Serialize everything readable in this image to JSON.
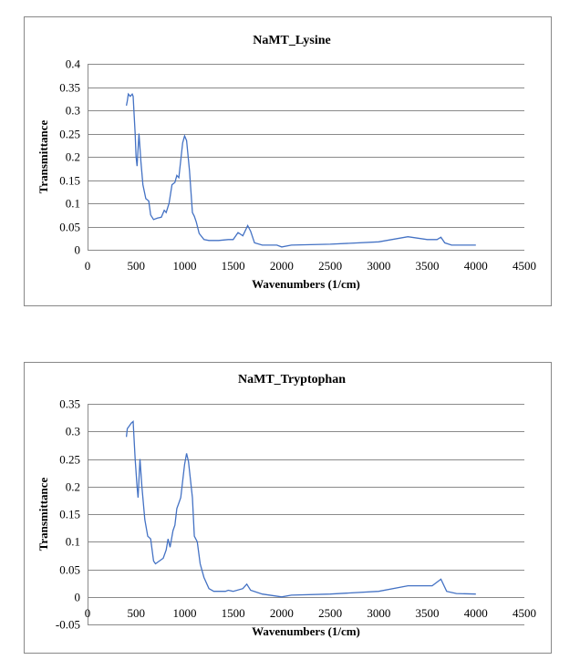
{
  "chart_data": [
    {
      "type": "line",
      "title": "NaMT_Lysine",
      "xlabel": "Wavenumbers (1/cm)",
      "ylabel": "Transmittance",
      "xlim": [
        0,
        4500
      ],
      "ylim": [
        0,
        0.4
      ],
      "xticks": [
        0,
        500,
        1000,
        1500,
        2000,
        2500,
        3000,
        3500,
        4000,
        4500
      ],
      "yticks": [
        0,
        0.05,
        0.1,
        0.15,
        0.2,
        0.25,
        0.3,
        0.35,
        0.4
      ],
      "ytick_labels": [
        "0",
        "0.05",
        "0.1",
        "0.15",
        "0.2",
        "0.25",
        "0.3",
        "0.35",
        "0.4"
      ],
      "grid": true,
      "color": "#4472c4",
      "series": [
        {
          "name": "NaMT_Lysine",
          "points": [
            [
              400,
              0.31
            ],
            [
              410,
              0.32
            ],
            [
              420,
              0.335
            ],
            [
              440,
              0.33
            ],
            [
              460,
              0.335
            ],
            [
              470,
              0.33
            ],
            [
              490,
              0.25
            ],
            [
              500,
              0.2
            ],
            [
              510,
              0.18
            ],
            [
              530,
              0.25
            ],
            [
              550,
              0.19
            ],
            [
              570,
              0.14
            ],
            [
              600,
              0.11
            ],
            [
              630,
              0.105
            ],
            [
              650,
              0.075
            ],
            [
              680,
              0.065
            ],
            [
              720,
              0.068
            ],
            [
              760,
              0.07
            ],
            [
              790,
              0.085
            ],
            [
              810,
              0.08
            ],
            [
              840,
              0.1
            ],
            [
              870,
              0.14
            ],
            [
              900,
              0.145
            ],
            [
              920,
              0.16
            ],
            [
              940,
              0.155
            ],
            [
              980,
              0.23
            ],
            [
              1000,
              0.245
            ],
            [
              1020,
              0.235
            ],
            [
              1050,
              0.17
            ],
            [
              1080,
              0.08
            ],
            [
              1100,
              0.072
            ],
            [
              1120,
              0.06
            ],
            [
              1150,
              0.035
            ],
            [
              1200,
              0.022
            ],
            [
              1250,
              0.02
            ],
            [
              1350,
              0.02
            ],
            [
              1450,
              0.022
            ],
            [
              1500,
              0.022
            ],
            [
              1550,
              0.037
            ],
            [
              1600,
              0.03
            ],
            [
              1650,
              0.052
            ],
            [
              1680,
              0.04
            ],
            [
              1720,
              0.015
            ],
            [
              1800,
              0.01
            ],
            [
              1950,
              0.01
            ],
            [
              2000,
              0.006
            ],
            [
              2100,
              0.01
            ],
            [
              2500,
              0.012
            ],
            [
              3000,
              0.017
            ],
            [
              3300,
              0.028
            ],
            [
              3500,
              0.022
            ],
            [
              3600,
              0.022
            ],
            [
              3640,
              0.027
            ],
            [
              3680,
              0.015
            ],
            [
              3750,
              0.01
            ],
            [
              4000,
              0.01
            ]
          ]
        }
      ]
    },
    {
      "type": "line",
      "title": "NaMT_Tryptophan",
      "xlabel": "Wavenumbers (1/cm)",
      "ylabel": "Transmittance",
      "xlim": [
        0,
        4500
      ],
      "ylim": [
        -0.05,
        0.35
      ],
      "xticks": [
        0,
        500,
        1000,
        1500,
        2000,
        2500,
        3000,
        3500,
        4000,
        4500
      ],
      "yticks": [
        -0.05,
        0,
        0.05,
        0.1,
        0.15,
        0.2,
        0.25,
        0.3,
        0.35
      ],
      "ytick_labels": [
        "-0.05",
        "0",
        "0.05",
        "0.1",
        "0.15",
        "0.2",
        "0.25",
        "0.3",
        "0.35"
      ],
      "grid": true,
      "color": "#4472c4",
      "series": [
        {
          "name": "NaMT_Tryptophan",
          "points": [
            [
              400,
              0.29
            ],
            [
              410,
              0.305
            ],
            [
              430,
              0.31
            ],
            [
              450,
              0.315
            ],
            [
              470,
              0.318
            ],
            [
              490,
              0.25
            ],
            [
              510,
              0.2
            ],
            [
              520,
              0.18
            ],
            [
              540,
              0.25
            ],
            [
              560,
              0.2
            ],
            [
              590,
              0.14
            ],
            [
              620,
              0.11
            ],
            [
              650,
              0.105
            ],
            [
              680,
              0.065
            ],
            [
              700,
              0.06
            ],
            [
              740,
              0.065
            ],
            [
              780,
              0.07
            ],
            [
              810,
              0.085
            ],
            [
              830,
              0.105
            ],
            [
              850,
              0.09
            ],
            [
              880,
              0.12
            ],
            [
              900,
              0.13
            ],
            [
              920,
              0.16
            ],
            [
              940,
              0.17
            ],
            [
              960,
              0.18
            ],
            [
              1000,
              0.24
            ],
            [
              1020,
              0.26
            ],
            [
              1040,
              0.245
            ],
            [
              1080,
              0.18
            ],
            [
              1100,
              0.11
            ],
            [
              1130,
              0.1
            ],
            [
              1160,
              0.06
            ],
            [
              1200,
              0.035
            ],
            [
              1250,
              0.015
            ],
            [
              1300,
              0.01
            ],
            [
              1420,
              0.01
            ],
            [
              1450,
              0.012
            ],
            [
              1500,
              0.01
            ],
            [
              1600,
              0.015
            ],
            [
              1640,
              0.023
            ],
            [
              1680,
              0.012
            ],
            [
              1800,
              0.005
            ],
            [
              2000,
              0.0
            ],
            [
              2100,
              0.003
            ],
            [
              2500,
              0.005
            ],
            [
              3000,
              0.01
            ],
            [
              3300,
              0.02
            ],
            [
              3550,
              0.02
            ],
            [
              3640,
              0.032
            ],
            [
              3700,
              0.01
            ],
            [
              3800,
              0.006
            ],
            [
              4000,
              0.005
            ]
          ]
        }
      ]
    }
  ]
}
